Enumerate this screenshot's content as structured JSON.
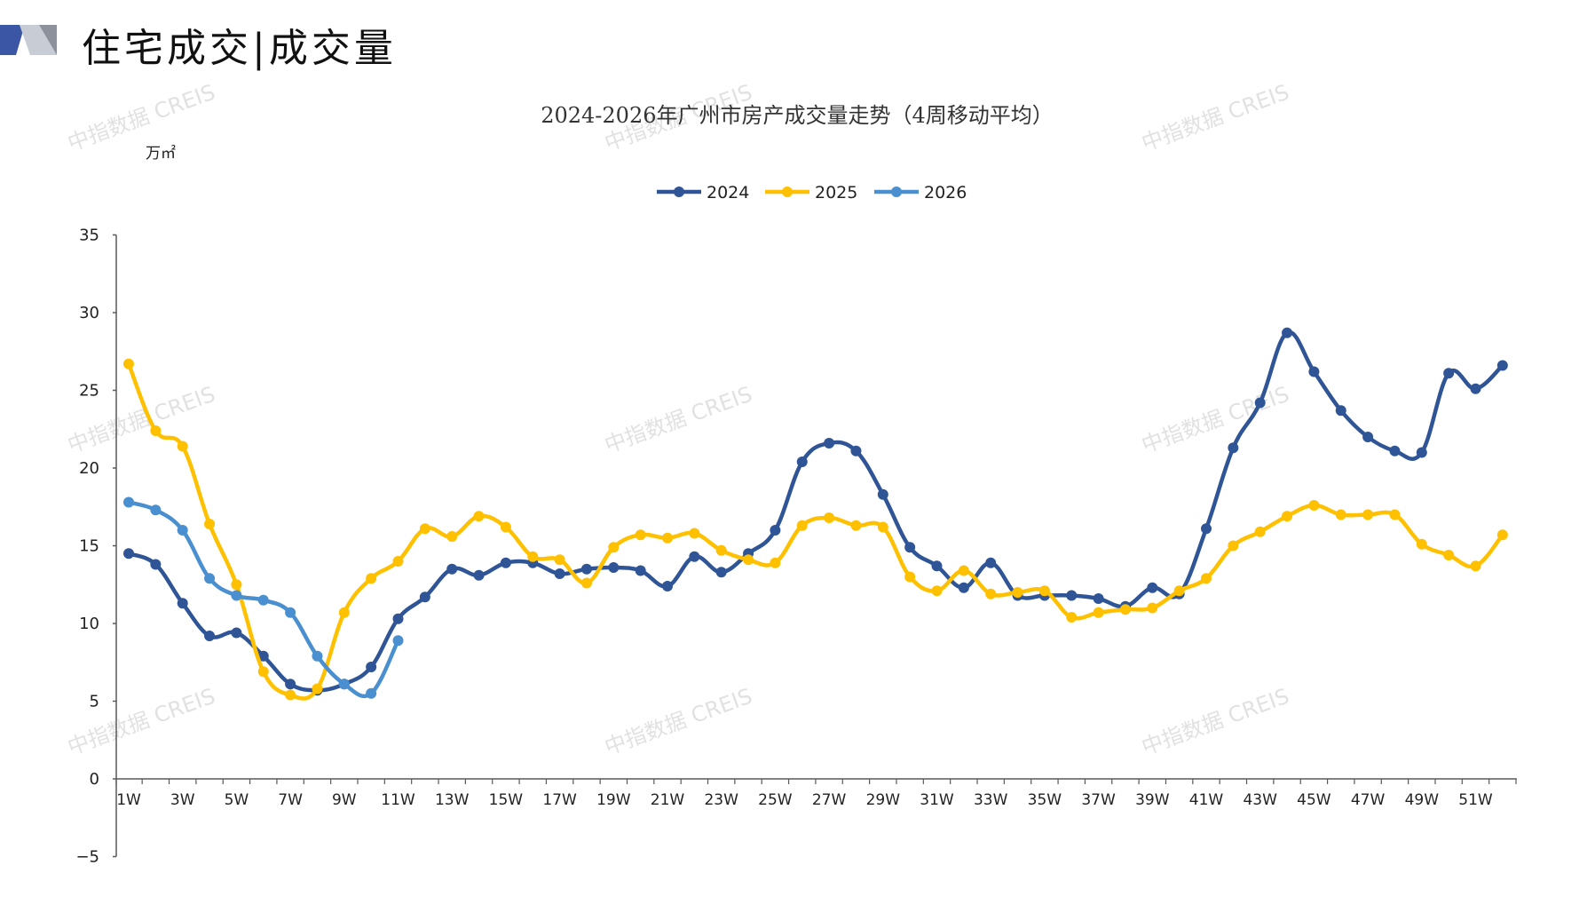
{
  "header": {
    "title": "住宅成交|成交量"
  },
  "colors": {
    "2024": "#2f5597",
    "2025": "#ffc000",
    "2026": "#4a8fcf",
    "axis": "#595959",
    "watermark": "#c9c9c9"
  },
  "watermark": "中指数据 CREIS",
  "chart_data": {
    "type": "line",
    "title": "2024-2026年广州市房产成交量走势（4周移动平均）",
    "ylabel": "万㎡",
    "xlabel": "",
    "ylim": [
      -5,
      35
    ],
    "yticks": [
      -5,
      0,
      5,
      10,
      15,
      20,
      25,
      30,
      35
    ],
    "x_tick_labels": [
      "1W",
      "3W",
      "5W",
      "7W",
      "9W",
      "11W",
      "13W",
      "15W",
      "17W",
      "19W",
      "21W",
      "23W",
      "25W",
      "27W",
      "29W",
      "31W",
      "33W",
      "35W",
      "37W",
      "39W",
      "41W",
      "43W",
      "45W",
      "47W",
      "49W",
      "51W"
    ],
    "legend": "top-center",
    "grid": false,
    "series": [
      {
        "name": "2024",
        "values": [
          14.5,
          13.8,
          11.3,
          9.2,
          9.4,
          7.9,
          6.1,
          5.7,
          6.1,
          7.2,
          10.3,
          11.7,
          13.5,
          13.1,
          13.9,
          13.9,
          13.2,
          13.5,
          13.6,
          13.4,
          12.4,
          14.3,
          13.3,
          14.5,
          16.0,
          20.4,
          21.6,
          21.1,
          18.3,
          14.9,
          13.7,
          12.3,
          13.9,
          11.8,
          11.8,
          11.8,
          11.6,
          11.1,
          12.3,
          11.9,
          16.1,
          21.3,
          24.2,
          28.7,
          26.2,
          23.7,
          22.0,
          21.1,
          21.0,
          26.1,
          25.1,
          26.6
        ]
      },
      {
        "name": "2025",
        "values": [
          26.7,
          22.4,
          21.4,
          16.4,
          12.5,
          6.9,
          5.4,
          5.8,
          10.7,
          12.9,
          14.0,
          16.1,
          15.6,
          16.9,
          16.2,
          14.3,
          14.1,
          12.6,
          14.9,
          15.7,
          15.5,
          15.8,
          14.7,
          14.1,
          13.9,
          16.3,
          16.8,
          16.3,
          16.2,
          13.0,
          12.1,
          13.4,
          11.9,
          12.0,
          12.1,
          10.4,
          10.7,
          10.9,
          11.0,
          12.1,
          12.9,
          15.0,
          15.9,
          16.9,
          17.6,
          17.0,
          17.0,
          17.0,
          15.1,
          14.4,
          13.7,
          15.7
        ]
      },
      {
        "name": "2026",
        "values": [
          17.8,
          17.3,
          16.0,
          12.9,
          11.8,
          11.5,
          10.7,
          7.9,
          6.1,
          5.5,
          8.9
        ]
      }
    ]
  }
}
